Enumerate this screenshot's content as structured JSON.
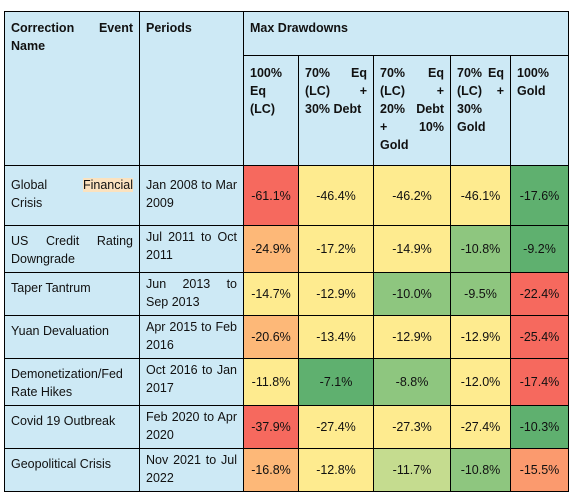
{
  "header": {
    "event_col": "Correction Event Name",
    "period_col": "Periods",
    "group": "Max Drawdowns",
    "portfolios": [
      "100% Eq (LC)",
      "70% Eq (LC) + 30% Debt",
      "70% Eq (LC) + 20% Debt + 10% Gold",
      "70% Eq (LC) + 30% Gold",
      "100% Gold"
    ]
  },
  "rows": [
    {
      "event_pre": "Global ",
      "event_hl": "Financial",
      "event_post": " Crisis",
      "period": "Jan 2008 to Mar 2009",
      "values": [
        "-61.1%",
        "-46.4%",
        "-46.2%",
        "-46.1%",
        "-17.6%"
      ]
    },
    {
      "event_pre": "US Credit Rating Downgrade",
      "event_hl": "",
      "event_post": "",
      "period": "Jul 2011 to Oct 2011",
      "values": [
        "-24.9%",
        "-17.2%",
        "-14.9%",
        "-10.8%",
        "-9.2%"
      ]
    },
    {
      "event_pre": "Taper Tantrum",
      "event_hl": "",
      "event_post": "",
      "period": "Jun 2013 to Sep 2013",
      "values": [
        "-14.7%",
        "-12.9%",
        "-10.0%",
        "-9.5%",
        "-22.4%"
      ]
    },
    {
      "event_pre": "Yuan Devaluation",
      "event_hl": "",
      "event_post": "",
      "period": "Apr 2015 to Feb 2016",
      "values": [
        "-20.6%",
        "-13.4%",
        "-12.9%",
        "-12.9%",
        "-25.4%"
      ]
    },
    {
      "event_pre": "Demonetization/Fed Rate Hikes",
      "event_hl": "",
      "event_post": "",
      "period": "Oct 2016 to Jan 2017",
      "values": [
        "-11.8%",
        "-7.1%",
        "-8.8%",
        "-12.0%",
        "-17.4%"
      ]
    },
    {
      "event_pre": "Covid 19 Outbreak",
      "event_hl": "",
      "event_post": "",
      "period": "Feb 2020 to Apr 2020",
      "values": [
        "-37.9%",
        "-27.4%",
        "-27.3%",
        "-27.4%",
        "-10.3%"
      ]
    },
    {
      "event_pre": "Geopolitical Crisis",
      "event_hl": "",
      "event_post": "",
      "period": "Nov 2021 to Jul 2022",
      "values": [
        "-16.8%",
        "-12.8%",
        "-11.7%",
        "-10.8%",
        "-15.5%"
      ]
    }
  ],
  "cell_colors": [
    [
      "#f6695e",
      "#feeb8f",
      "#feeb8f",
      "#feeb8f",
      "#5fb06f"
    ],
    [
      "#fdb878",
      "#feeb8f",
      "#feeb8f",
      "#8ec67f",
      "#5fb06f"
    ],
    [
      "#feeb8f",
      "#feeb8f",
      "#8ec67f",
      "#8ec67f",
      "#f6695e"
    ],
    [
      "#fdb878",
      "#feeb8f",
      "#feeb8f",
      "#feeb8f",
      "#f6695e"
    ],
    [
      "#feeb8f",
      "#5fb06f",
      "#8ec67f",
      "#feeb8f",
      "#f6695e"
    ],
    [
      "#f6695e",
      "#feeb8f",
      "#feeb8f",
      "#feeb8f",
      "#5fb06f"
    ],
    [
      "#fdb878",
      "#feeb8f",
      "#c5dc8f",
      "#8ec67f",
      "#fb9a6e"
    ]
  ],
  "colors": {
    "header_bg": "#cde9f5",
    "highlight_bg": "#fbe2bf"
  }
}
